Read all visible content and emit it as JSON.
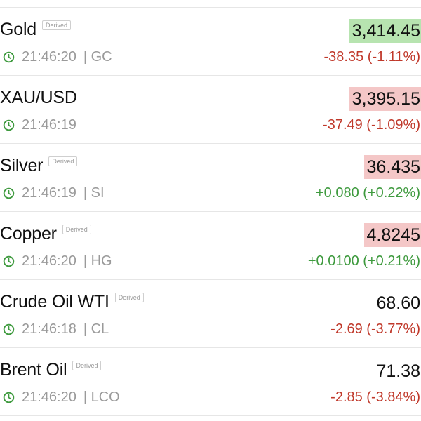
{
  "colors": {
    "positive": "#3e9a3e",
    "negative": "#c0392b",
    "price_up_highlight": "#b7e4b0",
    "price_down_highlight": "#f4c7c7",
    "clock_icon": "#3e9a3e"
  },
  "instruments": [
    {
      "name": "Gold",
      "derived_label": "Derived",
      "time": "21:46:20",
      "symbol": "| GC",
      "price": "3,414.45",
      "price_flash": "up",
      "change": "-38.35 (-1.11%)",
      "direction": "negative",
      "icon": "clock-icon"
    },
    {
      "name": "XAU/USD",
      "derived_label": "",
      "time": "21:46:19",
      "symbol": "",
      "price": "3,395.15",
      "price_flash": "down",
      "change": "-37.49 (-1.09%)",
      "direction": "negative",
      "icon": "clock-icon"
    },
    {
      "name": "Silver",
      "derived_label": "Derived",
      "time": "21:46:19",
      "symbol": "| SI",
      "price": "36.435",
      "price_flash": "down",
      "change": "+0.080 (+0.22%)",
      "direction": "positive",
      "icon": "clock-icon"
    },
    {
      "name": "Copper",
      "derived_label": "Derived",
      "time": "21:46:20",
      "symbol": "| HG",
      "price": "4.8245",
      "price_flash": "down",
      "change": "+0.0100 (+0.21%)",
      "direction": "positive",
      "icon": "clock-icon"
    },
    {
      "name": "Crude Oil WTI",
      "derived_label": "Derived",
      "time": "21:46:18",
      "symbol": "| CL",
      "price": "68.60",
      "price_flash": "none",
      "change": "-2.69 (-3.77%)",
      "direction": "negative",
      "icon": "clock-icon"
    },
    {
      "name": "Brent Oil",
      "derived_label": "Derived",
      "time": "21:46:20",
      "symbol": "| LCO",
      "price": "71.38",
      "price_flash": "none",
      "change": "-2.85 (-3.84%)",
      "direction": "negative",
      "icon": "clock-icon"
    }
  ]
}
